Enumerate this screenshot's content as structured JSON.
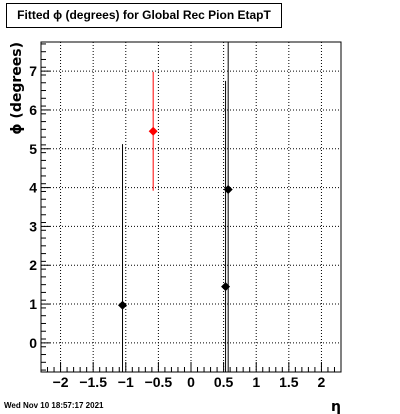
{
  "title": "Fitted ϕ (degrees) for Global Rec Pion EtapT",
  "timestamp": "Wed Nov 10 18:57:17 2021",
  "chart_data": {
    "type": "scatter",
    "title": "Fitted ϕ (degrees) for Global Rec Pion EtapT",
    "xlabel": "η",
    "ylabel": "ϕ (degrees)",
    "xlim": [
      -2.3,
      2.3
    ],
    "ylim": [
      -0.75,
      7.75
    ],
    "x_ticks": [
      -2,
      -1.5,
      -1,
      -0.5,
      0,
      0.5,
      1,
      1.5,
      2
    ],
    "x_tick_labels": [
      "−2",
      "−1.5",
      "−1",
      "−0.5",
      "0",
      "0.5",
      "1",
      "1.5",
      "2"
    ],
    "y_ticks": [
      0,
      1,
      2,
      3,
      4,
      5,
      6,
      7
    ],
    "y_tick_labels": [
      "0",
      "1",
      "2",
      "3",
      "4",
      "5",
      "6",
      "7"
    ],
    "grid": true,
    "series": [
      {
        "color": "#000000",
        "marker": "diamond",
        "points": [
          {
            "x": -1.05,
            "y": 0.97,
            "ylow": -0.75,
            "yhigh": 5.12
          },
          {
            "x": 0.53,
            "y": 1.45,
            "ylow": -0.75,
            "yhigh": 6.75
          },
          {
            "x": 0.57,
            "y": 3.95,
            "ylow": -0.75,
            "yhigh": 7.75
          }
        ]
      },
      {
        "color": "#ff0000",
        "marker": "diamond",
        "points": [
          {
            "x": -0.58,
            "y": 5.45,
            "ylow": 3.92,
            "yhigh": 6.98
          }
        ]
      }
    ]
  }
}
